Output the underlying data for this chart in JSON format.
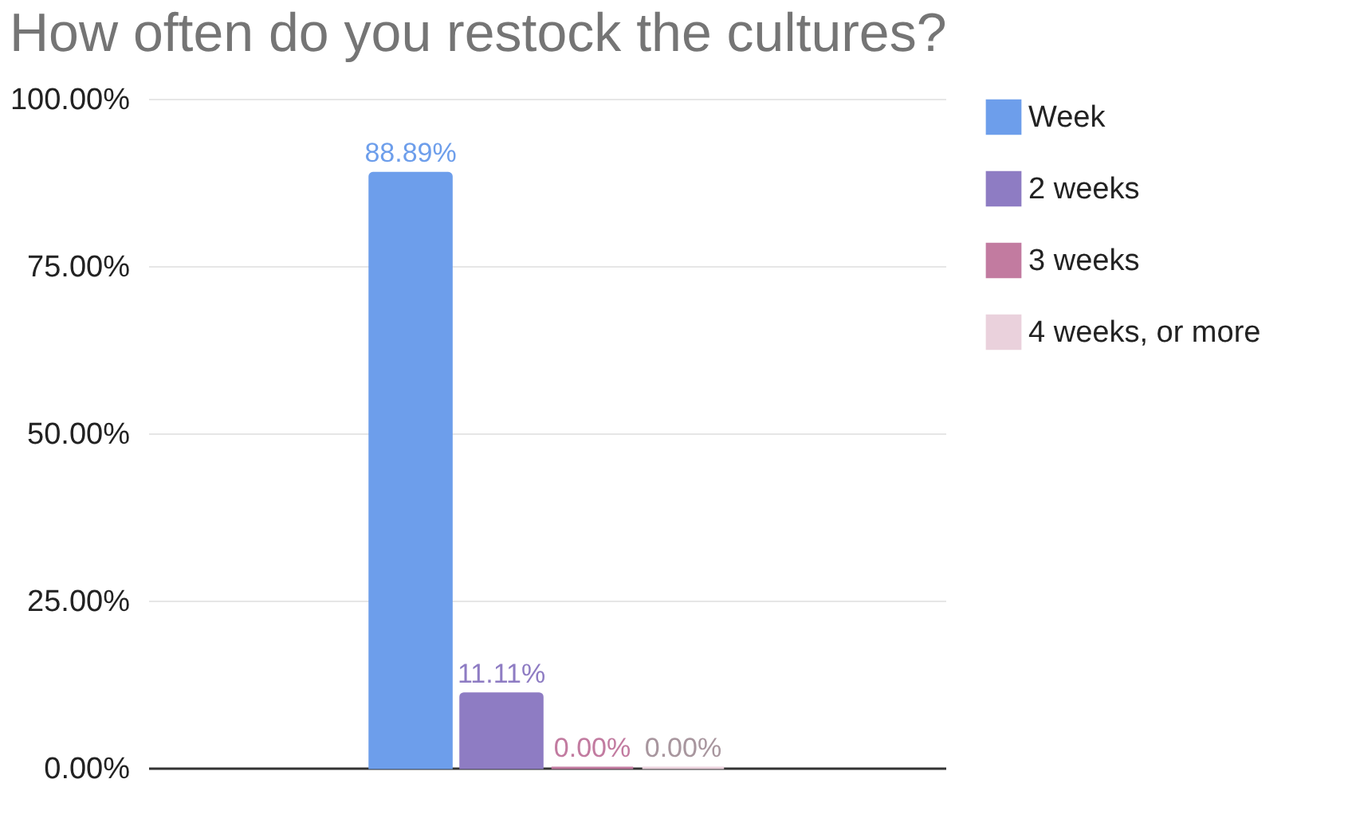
{
  "chart_data": {
    "type": "bar",
    "title": "How often do you restock the cultures?",
    "categories": [
      null
    ],
    "series": [
      {
        "name": "Week",
        "color": "#6d9eeb",
        "values": [
          88.89
        ],
        "value_labels": [
          "88.89%"
        ]
      },
      {
        "name": "2 weeks",
        "color": "#8e7cc3",
        "values": [
          11.11
        ],
        "value_labels": [
          "11.11%"
        ]
      },
      {
        "name": "3 weeks",
        "color": "#c27ba0",
        "values": [
          0
        ],
        "value_labels": [
          "0.00%"
        ]
      },
      {
        "name": "4 weeks, or more",
        "color": "#ead1dc",
        "values": [
          0
        ],
        "value_labels": [
          "0.00%"
        ]
      }
    ],
    "ylim": [
      0,
      100
    ],
    "yticks": [
      {
        "value": 0,
        "label": "0.00%"
      },
      {
        "value": 25,
        "label": "25.00%"
      },
      {
        "value": 50,
        "label": "50.00%"
      },
      {
        "value": 75,
        "label": "75.00%"
      },
      {
        "value": 100,
        "label": "100.00%"
      }
    ],
    "grid": "y",
    "legend": "right",
    "tick_labels": "y"
  }
}
